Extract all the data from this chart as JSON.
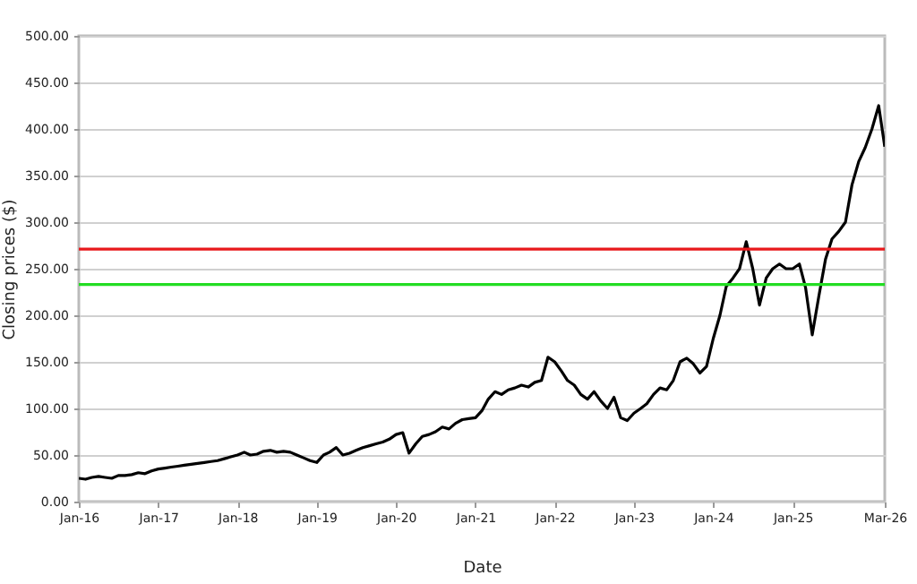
{
  "chart_data": {
    "type": "line",
    "xlabel": "Date",
    "ylabel": "Closing prices ($)",
    "x": [
      "2016-01",
      "2016-02",
      "2016-03",
      "2016-04",
      "2016-05",
      "2016-06",
      "2016-07",
      "2016-08",
      "2016-09",
      "2016-10",
      "2016-11",
      "2016-12",
      "2017-01",
      "2017-02",
      "2017-03",
      "2017-04",
      "2017-05",
      "2017-06",
      "2017-07",
      "2017-08",
      "2017-09",
      "2017-10",
      "2017-11",
      "2017-12",
      "2018-01",
      "2018-02",
      "2018-03",
      "2018-04",
      "2018-05",
      "2018-06",
      "2018-07",
      "2018-08",
      "2018-09",
      "2018-10",
      "2018-11",
      "2018-12",
      "2019-01",
      "2019-02",
      "2019-03",
      "2019-04",
      "2019-05",
      "2019-06",
      "2019-07",
      "2019-08",
      "2019-09",
      "2019-10",
      "2019-11",
      "2019-12",
      "2020-01",
      "2020-02",
      "2020-03",
      "2020-04",
      "2020-05",
      "2020-06",
      "2020-07",
      "2020-08",
      "2020-09",
      "2020-10",
      "2020-11",
      "2020-12",
      "2021-01",
      "2021-02",
      "2021-03",
      "2021-04",
      "2021-05",
      "2021-06",
      "2021-07",
      "2021-08",
      "2021-09",
      "2021-10",
      "2021-11",
      "2021-12",
      "2022-01",
      "2022-02",
      "2022-03",
      "2022-04",
      "2022-05",
      "2022-06",
      "2022-07",
      "2022-08",
      "2022-09",
      "2022-10",
      "2022-11",
      "2022-12",
      "2023-01",
      "2023-02",
      "2023-03",
      "2023-04",
      "2023-05",
      "2023-06",
      "2023-07",
      "2023-08",
      "2023-09",
      "2023-10",
      "2023-11",
      "2023-12",
      "2024-01",
      "2024-02",
      "2024-03",
      "2024-04",
      "2024-05",
      "2024-06",
      "2024-07",
      "2024-08",
      "2024-09",
      "2024-10",
      "2024-11",
      "2024-12",
      "2025-01",
      "2025-02",
      "2025-03",
      "2025-04",
      "2025-05",
      "2025-06",
      "2025-07",
      "2025-08",
      "2025-09",
      "2025-10",
      "2025-11",
      "2025-12",
      "2026-01",
      "2026-02",
      "2026-03"
    ],
    "series": [
      {
        "color": "#000000",
        "values": [
          25,
          24,
          26,
          27,
          26,
          25,
          28,
          28,
          29,
          31,
          30,
          33,
          35,
          36,
          37,
          38,
          39,
          40,
          41,
          42,
          43,
          44,
          46,
          48,
          50,
          53,
          50,
          51,
          54,
          55,
          53,
          54,
          53,
          50,
          47,
          44,
          42,
          50,
          53,
          58,
          50,
          52,
          55,
          58,
          60,
          62,
          64,
          67,
          72,
          74,
          52,
          62,
          70,
          72,
          75,
          80,
          78,
          84,
          88,
          89,
          90,
          98,
          110,
          118,
          115,
          120,
          122,
          125,
          123,
          128,
          130,
          155,
          150,
          140,
          130,
          125,
          115,
          110,
          118,
          108,
          100,
          112,
          90,
          87,
          95,
          100,
          105,
          115,
          122,
          120,
          130,
          150,
          154,
          148,
          138,
          145,
          175,
          200,
          231,
          240,
          250,
          279,
          250,
          211,
          240,
          250,
          255,
          250,
          250,
          255,
          230,
          179,
          220,
          260,
          282,
          290,
          300,
          340,
          365,
          380,
          400,
          425,
          381
        ]
      }
    ],
    "xlim": [
      "2016-01",
      "2026-03"
    ],
    "xticks": [
      {
        "value": "2016-01",
        "label": "Jan-16"
      },
      {
        "value": "2017-01",
        "label": "Jan-17"
      },
      {
        "value": "2018-01",
        "label": "Jan-18"
      },
      {
        "value": "2019-01",
        "label": "Jan-19"
      },
      {
        "value": "2020-01",
        "label": "Jan-20"
      },
      {
        "value": "2021-01",
        "label": "Jan-21"
      },
      {
        "value": "2022-01",
        "label": "Jan-22"
      },
      {
        "value": "2023-01",
        "label": "Jan-23"
      },
      {
        "value": "2024-01",
        "label": "Jan-24"
      },
      {
        "value": "2025-01",
        "label": "Jan-25"
      },
      {
        "value": "2026-03",
        "label": "Mar-26"
      }
    ],
    "ylim": [
      0,
      500
    ],
    "yticks": [
      {
        "value": 0,
        "label": "0.00"
      },
      {
        "value": 50,
        "label": "50.00"
      },
      {
        "value": 100,
        "label": "100.00"
      },
      {
        "value": 150,
        "label": "150.00"
      },
      {
        "value": 200,
        "label": "200.00"
      },
      {
        "value": 250,
        "label": "250.00"
      },
      {
        "value": 300,
        "label": "300.00"
      },
      {
        "value": 350,
        "label": "350.00"
      },
      {
        "value": 400,
        "label": "400.00"
      },
      {
        "value": 450,
        "label": "450.00"
      },
      {
        "value": 500,
        "label": "500.00"
      }
    ],
    "ref_lines": [
      {
        "axis": "y",
        "value": 271,
        "color": "#e8191c"
      },
      {
        "axis": "y",
        "value": 233,
        "color": "#22dd22"
      }
    ],
    "grid": "y"
  }
}
